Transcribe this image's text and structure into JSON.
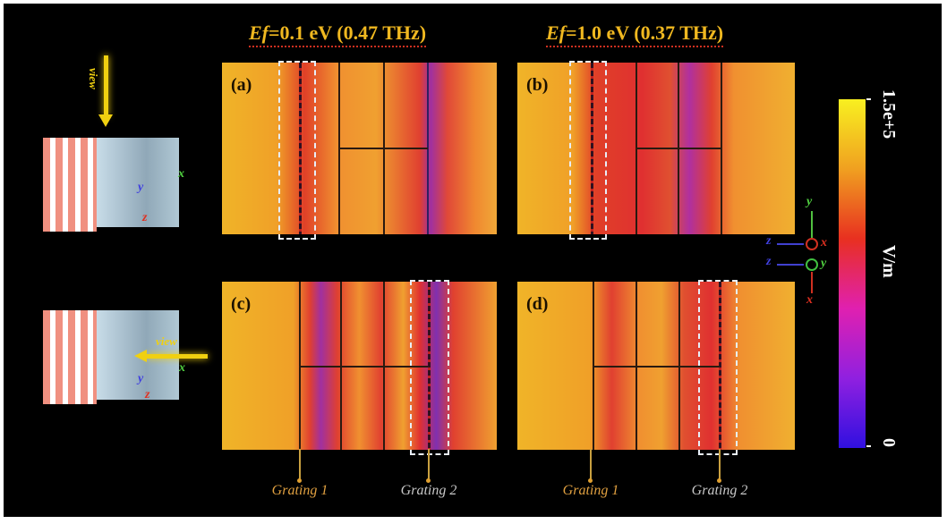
{
  "titles": [
    {
      "prefix": "Ef",
      "rest": "=0.1 eV (0.47 THz)"
    },
    {
      "prefix": "Ef",
      "rest": "=1.0 eV (0.37 THz)"
    }
  ],
  "panels": [
    {
      "label": "(a)"
    },
    {
      "label": "(b)"
    },
    {
      "label": "(c)"
    },
    {
      "label": "(d)"
    }
  ],
  "gratings": {
    "g1": "Grating 1",
    "g2": "Grating 2"
  },
  "view_label": "view",
  "colorbar": {
    "max": "1.5e+5",
    "min": "0",
    "unit": "V/m",
    "colors": [
      "#f8f020",
      "#f0a020",
      "#e83020",
      "#e020b0",
      "#9020e0",
      "#3010e0"
    ]
  },
  "axes": {
    "x": "x",
    "y": "y",
    "z": "z"
  }
}
